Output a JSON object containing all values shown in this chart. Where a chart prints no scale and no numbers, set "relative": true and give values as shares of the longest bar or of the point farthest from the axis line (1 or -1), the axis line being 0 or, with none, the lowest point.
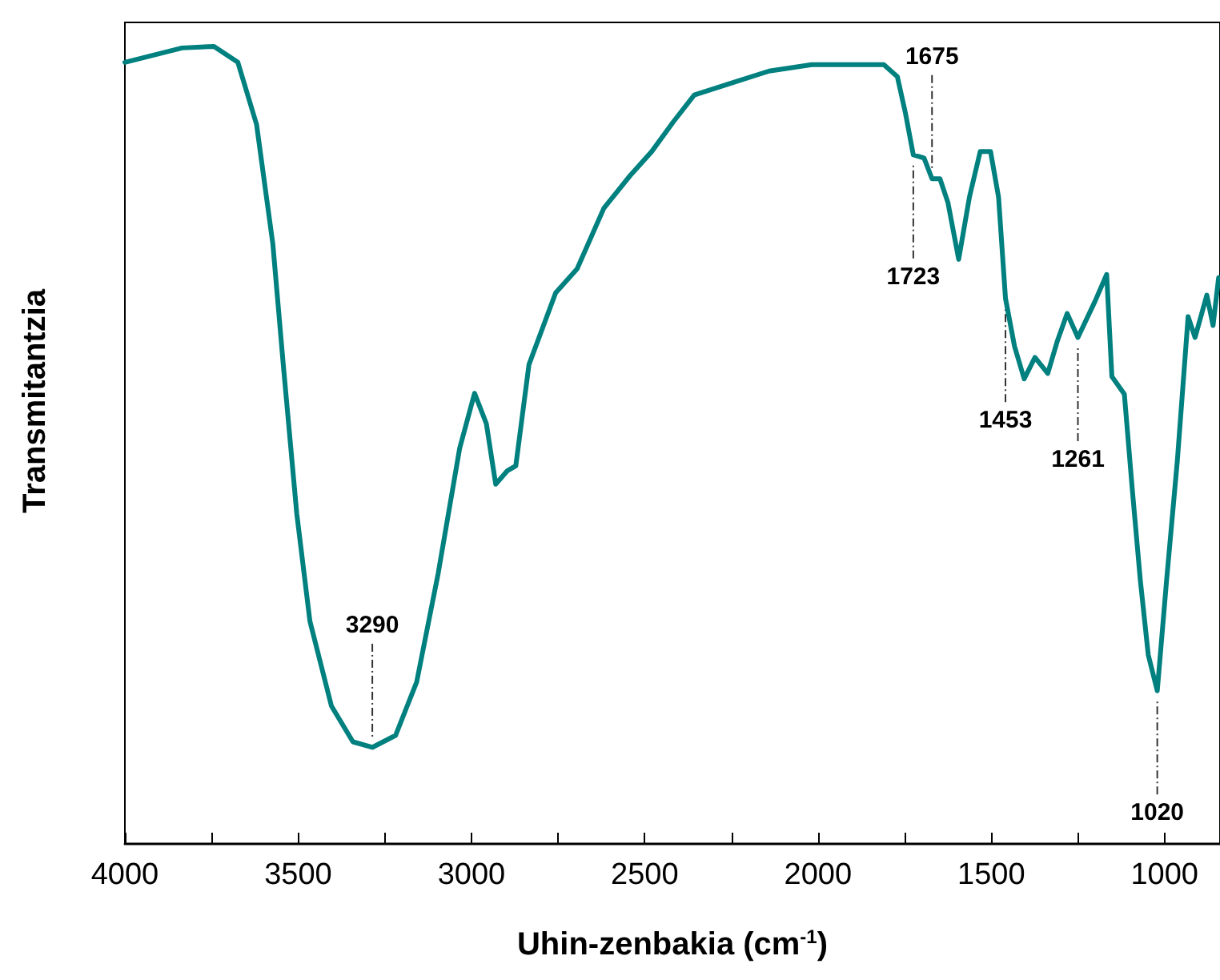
{
  "chart_data": {
    "type": "line",
    "xlabel": "Uhin-zenbakia (cm$^{-1}$)",
    "ylabel": "Transmitantzia",
    "relative": true,
    "grid": false,
    "marker": "none",
    "line_style": "solid",
    "xlim": [
      4000,
      840
    ],
    "xticks": [
      4000,
      {
        "value": 3750,
        "label": null
      },
      3500,
      {
        "value": 3250,
        "label": null
      },
      3000,
      {
        "value": 2750,
        "label": null
      },
      2500,
      {
        "value": 2250,
        "label": null
      },
      2000,
      {
        "value": 1750,
        "label": null
      },
      1500,
      {
        "value": 1250,
        "label": null
      },
      1000
    ],
    "series": [
      {
        "color": "#00807f",
        "x": [
          4000,
          3835,
          3743,
          3674,
          3620,
          3573,
          3543,
          3504,
          3466,
          3404,
          3342,
          3286,
          3219,
          3158,
          3096,
          3034,
          2991,
          2957,
          2930,
          2896,
          2872,
          2834,
          2757,
          2695,
          2618,
          2542,
          2480,
          2418,
          2357,
          2249,
          2141,
          2018,
          1895,
          1810,
          1771,
          1748,
          1725,
          1694,
          1671,
          1648,
          1625,
          1594,
          1563,
          1532,
          1502,
          1479,
          1459,
          1433,
          1405,
          1374,
          1337,
          1309,
          1281,
          1250,
          1201,
          1167,
          1152,
          1116,
          1093,
          1070,
          1047,
          1021,
          994,
          963,
          932,
          912,
          878,
          860,
          844
        ],
        "values": [
          0.98,
          0.998,
          1.0,
          0.98,
          0.902,
          0.752,
          0.601,
          0.414,
          0.279,
          0.173,
          0.128,
          0.121,
          0.136,
          0.203,
          0.339,
          0.496,
          0.565,
          0.527,
          0.451,
          0.468,
          0.474,
          0.601,
          0.691,
          0.721,
          0.797,
          0.838,
          0.868,
          0.905,
          0.939,
          0.954,
          0.969,
          0.977,
          0.977,
          0.977,
          0.962,
          0.917,
          0.864,
          0.86,
          0.834,
          0.834,
          0.804,
          0.733,
          0.811,
          0.868,
          0.868,
          0.811,
          0.684,
          0.624,
          0.583,
          0.61,
          0.59,
          0.631,
          0.665,
          0.635,
          0.68,
          0.714,
          0.586,
          0.564,
          0.444,
          0.331,
          0.237,
          0.192,
          0.331,
          0.481,
          0.661,
          0.635,
          0.688,
          0.65,
          0.71
        ]
      }
    ],
    "annotations": [
      {
        "text": "3290",
        "x": 3286,
        "y": 0.121
      },
      {
        "text": "1723",
        "x": 1725,
        "y": 0.864
      },
      {
        "text": "1675",
        "x": 1671,
        "y": 0.834
      },
      {
        "text": "1453",
        "x": 1459,
        "y": 0.684
      },
      {
        "text": "1261",
        "x": 1250,
        "y": 0.635
      },
      {
        "text": "1020",
        "x": 1021,
        "y": 0.192
      }
    ]
  }
}
